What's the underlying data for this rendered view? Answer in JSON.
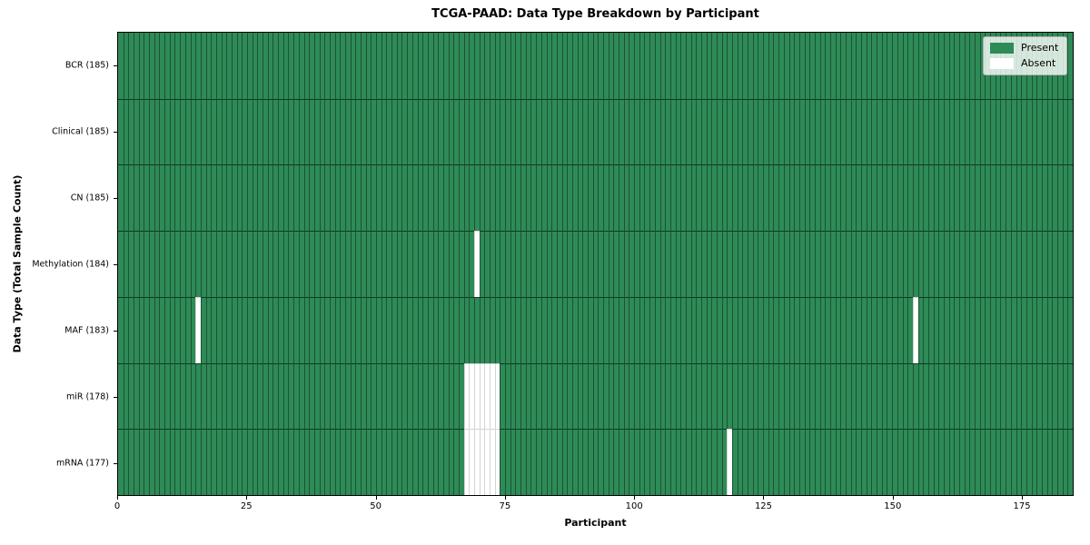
{
  "chart_data": {
    "type": "heatmap",
    "title": "TCGA-PAAD: Data Type Breakdown by Participant",
    "xlabel": "Participant",
    "ylabel": "Data Type (Total Sample Count)",
    "xlim": [
      0,
      185
    ],
    "n_participants": 185,
    "x_ticks": [
      0,
      25,
      50,
      75,
      100,
      125,
      150,
      175
    ],
    "grid": "cell-borders",
    "legend": {
      "position": "upper right",
      "entries": [
        {
          "label": "Present",
          "color": "#2e8b57"
        },
        {
          "label": "Absent",
          "color": "#ffffff"
        }
      ]
    },
    "rows": [
      {
        "label": "BCR (185)",
        "data_type": "BCR",
        "total": 185,
        "absent_participants": []
      },
      {
        "label": "Clinical (185)",
        "data_type": "Clinical",
        "total": 185,
        "absent_participants": []
      },
      {
        "label": "CN (185)",
        "data_type": "CN",
        "total": 185,
        "absent_participants": []
      },
      {
        "label": "Methylation (184)",
        "data_type": "Methylation",
        "total": 184,
        "absent_participants": [
          69
        ]
      },
      {
        "label": "MAF (183)",
        "data_type": "MAF",
        "total": 183,
        "absent_participants": [
          15,
          154
        ]
      },
      {
        "label": "miR (178)",
        "data_type": "miR",
        "total": 178,
        "absent_participants": [
          67,
          68,
          69,
          70,
          71,
          72,
          73
        ]
      },
      {
        "label": "mRNA (177)",
        "data_type": "mRNA",
        "total": 177,
        "absent_participants": [
          67,
          68,
          69,
          70,
          71,
          72,
          73,
          118
        ]
      }
    ],
    "colors": {
      "present": "#2e8b57",
      "absent": "#ffffff",
      "present_border": "rgba(0,0,0,0.4)",
      "row_border": "rgba(0,0,0,0.6)",
      "absent_border": "#d4d4d4",
      "spine": "#000000",
      "legend_bg": "rgba(255,255,255,0.8)",
      "legend_border": "#b3b3b3"
    }
  }
}
